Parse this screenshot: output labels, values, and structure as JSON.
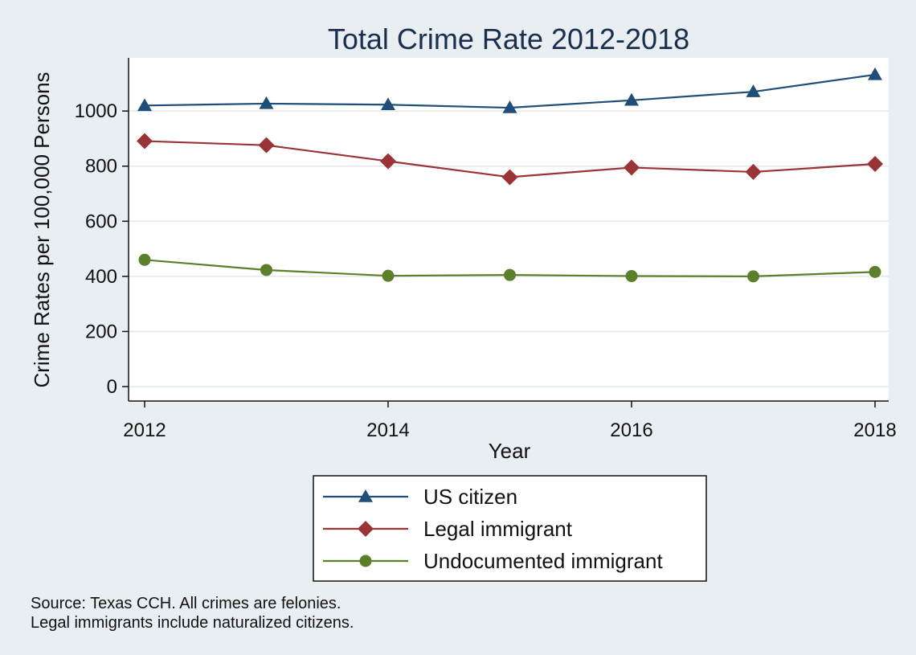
{
  "chart_data": {
    "type": "line",
    "title": "Total Crime Rate 2012-2018",
    "xlabel": "Year",
    "ylabel": "Crime Rates per 100,000 Persons",
    "x": [
      2012,
      2013,
      2014,
      2015,
      2016,
      2017,
      2018
    ],
    "x_ticks": [
      "2012",
      "2014",
      "2016",
      "2018"
    ],
    "y_ticks": [
      "0",
      "200",
      "400",
      "600",
      "800",
      "1000"
    ],
    "xlim": [
      2012,
      2018
    ],
    "ylim": [
      0,
      1150
    ],
    "grid": true,
    "legend_position": "bottom",
    "series": [
      {
        "name": "US citizen",
        "color": "#1f4e79",
        "marker": "triangle",
        "values": [
          1020,
          1027,
          1023,
          1012,
          1039,
          1070,
          1132
        ]
      },
      {
        "name": "Legal immigrant",
        "color": "#9a3336",
        "marker": "diamond",
        "values": [
          891,
          876,
          818,
          760,
          795,
          779,
          808
        ]
      },
      {
        "name": "Undocumented immigrant",
        "color": "#5b7f2b",
        "marker": "circle",
        "values": [
          460,
          423,
          402,
          405,
          401,
          400,
          416
        ]
      }
    ]
  },
  "notes": [
    "Source: Texas CCH. All crimes are felonies.",
    "Legal immigrants include naturalized citizens."
  ]
}
